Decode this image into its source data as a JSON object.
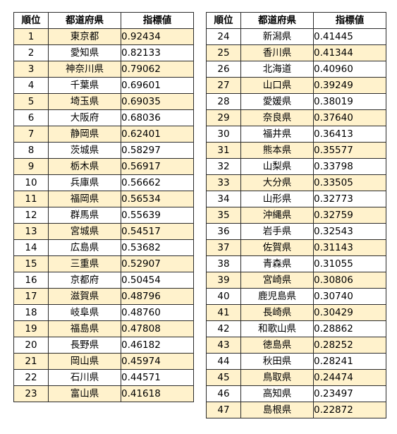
{
  "headers": {
    "rank": "順位",
    "prefecture": "都道府県",
    "index": "指標値"
  },
  "left_rows": [
    {
      "rank": "1",
      "prefecture": "東京都",
      "value": "0.92434"
    },
    {
      "rank": "2",
      "prefecture": "愛知県",
      "value": "0.82133"
    },
    {
      "rank": "3",
      "prefecture": "神奈川県",
      "value": "0.79062"
    },
    {
      "rank": "4",
      "prefecture": "千葉県",
      "value": "0.69601"
    },
    {
      "rank": "5",
      "prefecture": "埼玉県",
      "value": "0.69035"
    },
    {
      "rank": "6",
      "prefecture": "大阪府",
      "value": "0.68036"
    },
    {
      "rank": "7",
      "prefecture": "静岡県",
      "value": "0.62401"
    },
    {
      "rank": "8",
      "prefecture": "茨城県",
      "value": "0.58297"
    },
    {
      "rank": "9",
      "prefecture": "栃木県",
      "value": "0.56917"
    },
    {
      "rank": "10",
      "prefecture": "兵庫県",
      "value": "0.56662"
    },
    {
      "rank": "11",
      "prefecture": "福岡県",
      "value": "0.56534"
    },
    {
      "rank": "12",
      "prefecture": "群馬県",
      "value": "0.55639"
    },
    {
      "rank": "13",
      "prefecture": "宮城県",
      "value": "0.54517"
    },
    {
      "rank": "14",
      "prefecture": "広島県",
      "value": "0.53682"
    },
    {
      "rank": "15",
      "prefecture": "三重県",
      "value": "0.52907"
    },
    {
      "rank": "16",
      "prefecture": "京都府",
      "value": "0.50454"
    },
    {
      "rank": "17",
      "prefecture": "滋賀県",
      "value": "0.48796"
    },
    {
      "rank": "18",
      "prefecture": "岐阜県",
      "value": "0.48760"
    },
    {
      "rank": "19",
      "prefecture": "福島県",
      "value": "0.47808"
    },
    {
      "rank": "20",
      "prefecture": "長野県",
      "value": "0.46182"
    },
    {
      "rank": "21",
      "prefecture": "岡山県",
      "value": "0.45974"
    },
    {
      "rank": "22",
      "prefecture": "石川県",
      "value": "0.44571"
    },
    {
      "rank": "23",
      "prefecture": "富山県",
      "value": "0.41618"
    }
  ],
  "right_rows": [
    {
      "rank": "24",
      "prefecture": "新潟県",
      "value": "0.41445"
    },
    {
      "rank": "25",
      "prefecture": "香川県",
      "value": "0.41344"
    },
    {
      "rank": "26",
      "prefecture": "北海道",
      "value": "0.40960"
    },
    {
      "rank": "27",
      "prefecture": "山口県",
      "value": "0.39249"
    },
    {
      "rank": "28",
      "prefecture": "愛媛県",
      "value": "0.38019"
    },
    {
      "rank": "29",
      "prefecture": "奈良県",
      "value": "0.37640"
    },
    {
      "rank": "30",
      "prefecture": "福井県",
      "value": "0.36413"
    },
    {
      "rank": "31",
      "prefecture": "熊本県",
      "value": "0.35577"
    },
    {
      "rank": "32",
      "prefecture": "山梨県",
      "value": "0.33798"
    },
    {
      "rank": "33",
      "prefecture": "大分県",
      "value": "0.33505"
    },
    {
      "rank": "34",
      "prefecture": "山形県",
      "value": "0.32773"
    },
    {
      "rank": "35",
      "prefecture": "沖縄県",
      "value": "0.32759"
    },
    {
      "rank": "36",
      "prefecture": "岩手県",
      "value": "0.32543"
    },
    {
      "rank": "37",
      "prefecture": "佐賀県",
      "value": "0.31143"
    },
    {
      "rank": "38",
      "prefecture": "青森県",
      "value": "0.31055"
    },
    {
      "rank": "39",
      "prefecture": "宮崎県",
      "value": "0.30806"
    },
    {
      "rank": "40",
      "prefecture": "鹿児島県",
      "value": "0.30740"
    },
    {
      "rank": "41",
      "prefecture": "長崎県",
      "value": "0.30429"
    },
    {
      "rank": "42",
      "prefecture": "和歌山県",
      "value": "0.28862"
    },
    {
      "rank": "43",
      "prefecture": "徳島県",
      "value": "0.28252"
    },
    {
      "rank": "44",
      "prefecture": "秋田県",
      "value": "0.28241"
    },
    {
      "rank": "45",
      "prefecture": "鳥取県",
      "value": "0.24474"
    },
    {
      "rank": "46",
      "prefecture": "高知県",
      "value": "0.23497"
    },
    {
      "rank": "47",
      "prefecture": "島根県",
      "value": "0.22872"
    }
  ],
  "colors": {
    "odd_row_fill": "#fff2cc",
    "even_row_fill": "#ffffff",
    "border": "#2b2b2b"
  }
}
